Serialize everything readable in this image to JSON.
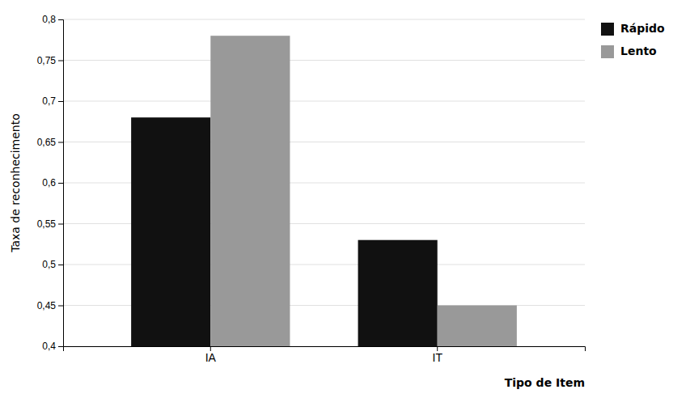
{
  "chart_data": {
    "type": "bar",
    "categories": [
      "IA",
      "IT"
    ],
    "series": [
      {
        "name": "Rápido",
        "color": "#111111",
        "values": [
          0.68,
          0.53
        ]
      },
      {
        "name": "Lento",
        "color": "#999999",
        "values": [
          0.78,
          0.45
        ]
      }
    ],
    "ylabel": "Taxa de reconhecimento",
    "xlabel": "Tipo de Item",
    "ylim": [
      0.4,
      0.8
    ],
    "yticks": [
      {
        "value": 0.4,
        "label": "0,4"
      },
      {
        "value": 0.45,
        "label": "0,45"
      },
      {
        "value": 0.5,
        "label": "0,5"
      },
      {
        "value": 0.55,
        "label": "0,55"
      },
      {
        "value": 0.6,
        "label": "0,6"
      },
      {
        "value": 0.65,
        "label": "0,65"
      },
      {
        "value": 0.7,
        "label": "0,7"
      },
      {
        "value": 0.75,
        "label": "0,75"
      },
      {
        "value": 0.8,
        "label": "0,8"
      }
    ],
    "grid": true,
    "legend": "upper right"
  }
}
